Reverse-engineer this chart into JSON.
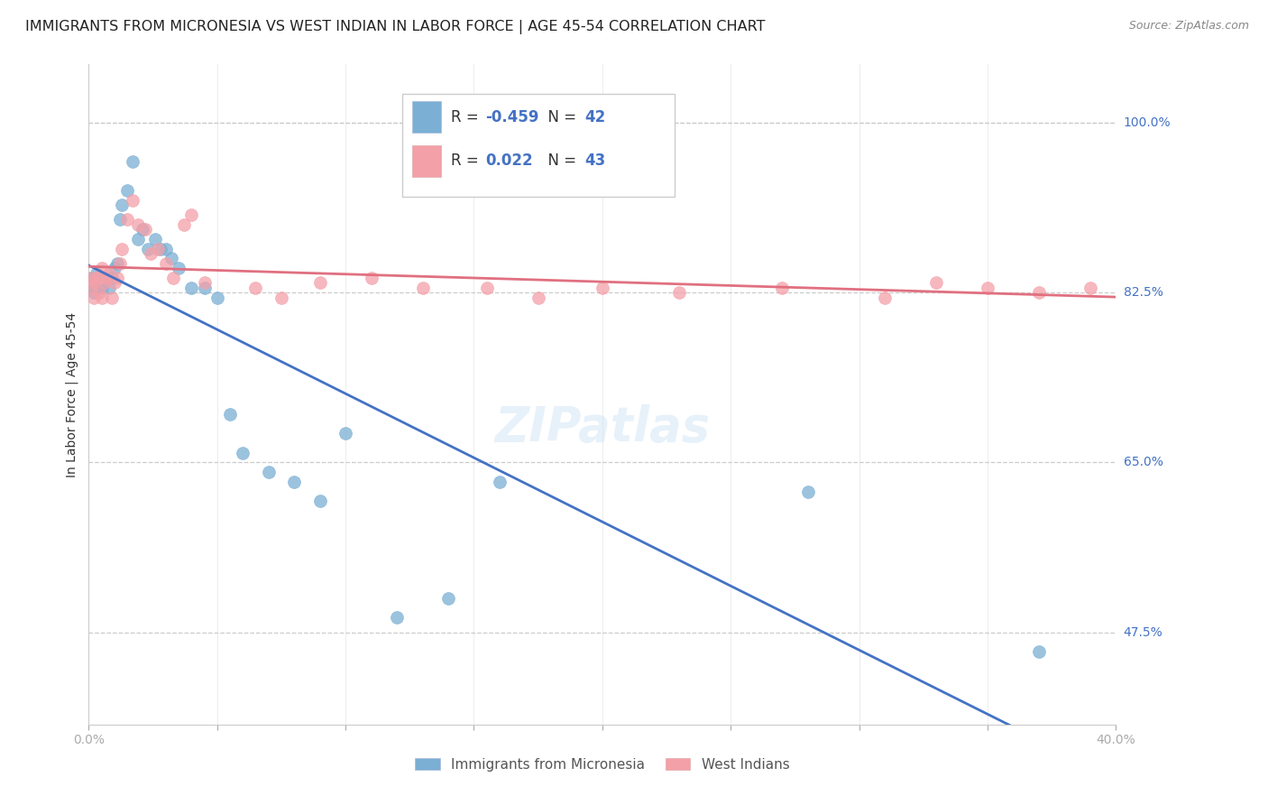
{
  "title": "IMMIGRANTS FROM MICRONESIA VS WEST INDIAN IN LABOR FORCE | AGE 45-54 CORRELATION CHART",
  "source": "Source: ZipAtlas.com",
  "ylabel": "In Labor Force | Age 45-54",
  "xlim": [
    0.0,
    0.4
  ],
  "ylim": [
    0.38,
    1.06
  ],
  "grid_color": "#cccccc",
  "background_color": "#ffffff",
  "micronesia_color": "#7bafd4",
  "west_indian_color": "#f4a0a8",
  "micronesia_line_color": "#4472c4",
  "west_indian_line_color": "#e07080",
  "legend_micronesia": "Immigrants from Micronesia",
  "legend_west_indian": "West Indians",
  "R_micronesia": -0.459,
  "N_micronesia": 42,
  "R_west_indian": 0.022,
  "N_west_indian": 43,
  "micronesia_x": [
    0.001,
    0.001,
    0.002,
    0.002,
    0.003,
    0.003,
    0.004,
    0.004,
    0.005,
    0.005,
    0.006,
    0.007,
    0.008,
    0.009,
    0.01,
    0.011,
    0.012,
    0.013,
    0.015,
    0.017,
    0.019,
    0.021,
    0.023,
    0.026,
    0.028,
    0.03,
    0.032,
    0.035,
    0.04,
    0.045,
    0.05,
    0.055,
    0.06,
    0.07,
    0.08,
    0.09,
    0.1,
    0.12,
    0.14,
    0.16,
    0.28,
    0.37
  ],
  "micronesia_y": [
    0.83,
    0.84,
    0.825,
    0.835,
    0.83,
    0.845,
    0.83,
    0.83,
    0.83,
    0.835,
    0.84,
    0.84,
    0.83,
    0.84,
    0.85,
    0.855,
    0.9,
    0.915,
    0.93,
    0.96,
    0.88,
    0.89,
    0.87,
    0.88,
    0.87,
    0.87,
    0.86,
    0.85,
    0.83,
    0.83,
    0.82,
    0.7,
    0.66,
    0.64,
    0.63,
    0.61,
    0.68,
    0.49,
    0.51,
    0.63,
    0.62,
    0.455
  ],
  "west_indian_x": [
    0.001,
    0.001,
    0.002,
    0.002,
    0.003,
    0.004,
    0.004,
    0.005,
    0.005,
    0.006,
    0.007,
    0.008,
    0.009,
    0.01,
    0.011,
    0.012,
    0.013,
    0.015,
    0.017,
    0.019,
    0.022,
    0.024,
    0.027,
    0.03,
    0.033,
    0.037,
    0.04,
    0.045,
    0.065,
    0.075,
    0.09,
    0.11,
    0.13,
    0.155,
    0.175,
    0.2,
    0.23,
    0.27,
    0.31,
    0.33,
    0.35,
    0.37,
    0.39
  ],
  "west_indian_y": [
    0.83,
    0.84,
    0.82,
    0.835,
    0.84,
    0.84,
    0.825,
    0.85,
    0.82,
    0.835,
    0.84,
    0.845,
    0.82,
    0.835,
    0.84,
    0.855,
    0.87,
    0.9,
    0.92,
    0.895,
    0.89,
    0.865,
    0.87,
    0.855,
    0.84,
    0.895,
    0.905,
    0.835,
    0.83,
    0.82,
    0.835,
    0.84,
    0.83,
    0.83,
    0.82,
    0.83,
    0.825,
    0.83,
    0.82,
    0.835,
    0.83,
    0.825,
    0.83
  ],
  "title_fontsize": 11.5,
  "axis_label_fontsize": 10,
  "tick_fontsize": 10,
  "source_fontsize": 9
}
